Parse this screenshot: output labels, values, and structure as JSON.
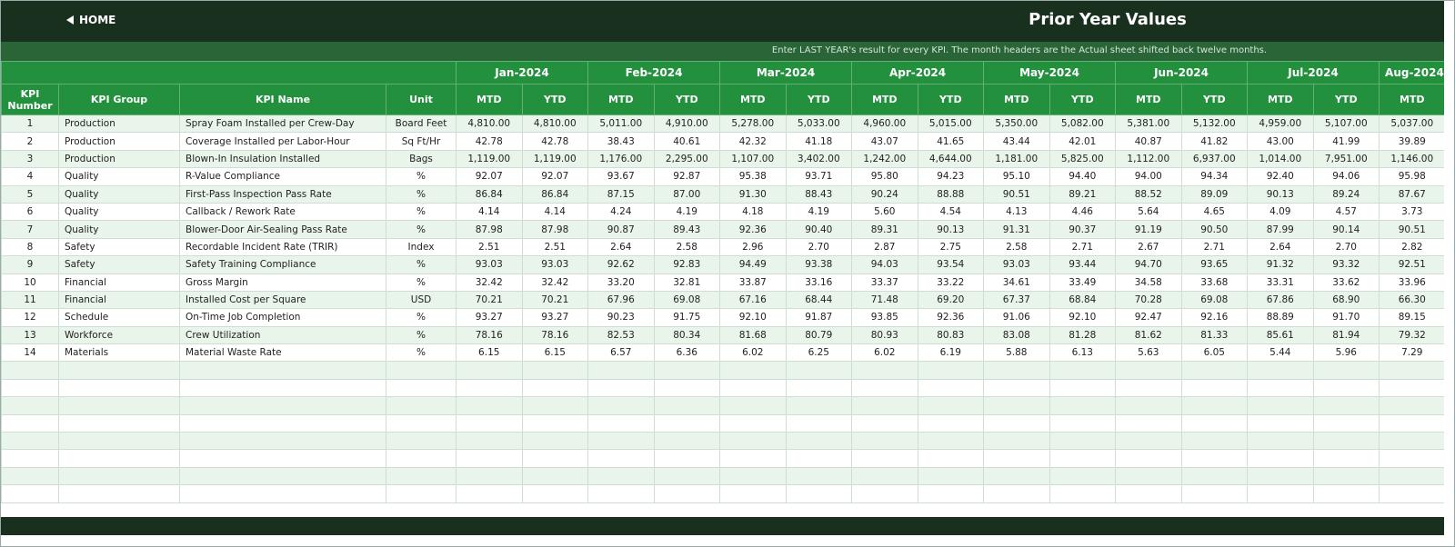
{
  "header": {
    "home": "HOME",
    "title": "Prior Year Values",
    "note": "Enter LAST YEAR's result for every KPI. The month headers are the Actual sheet shifted back twelve months."
  },
  "table": {
    "columns": [
      "KPI Number",
      "KPI Group",
      "KPI Name",
      "Unit"
    ],
    "months": [
      {
        "label": "Jan-2024",
        "sub": [
          "MTD",
          "YTD"
        ]
      },
      {
        "label": "Feb-2024",
        "sub": [
          "MTD",
          "YTD"
        ]
      },
      {
        "label": "Mar-2024",
        "sub": [
          "MTD",
          "YTD"
        ]
      },
      {
        "label": "Apr-2024",
        "sub": [
          "MTD",
          "YTD"
        ]
      },
      {
        "label": "May-2024",
        "sub": [
          "MTD",
          "YTD"
        ]
      },
      {
        "label": "Jun-2024",
        "sub": [
          "MTD",
          "YTD"
        ]
      },
      {
        "label": "Jul-2024",
        "sub": [
          "MTD",
          "YTD"
        ]
      },
      {
        "label": "Aug-2024",
        "sub": [
          "MTD"
        ]
      }
    ],
    "rows": [
      [
        "1",
        "Production",
        "Spray Foam Installed per Crew-Day",
        "Board Feet",
        "4,810.00",
        "4,810.00",
        "5,011.00",
        "4,910.00",
        "5,278.00",
        "5,033.00",
        "4,960.00",
        "5,015.00",
        "5,350.00",
        "5,082.00",
        "5,381.00",
        "5,132.00",
        "4,959.00",
        "5,107.00",
        "5,037.00"
      ],
      [
        "2",
        "Production",
        "Coverage Installed per Labor-Hour",
        "Sq Ft/Hr",
        "42.78",
        "42.78",
        "38.43",
        "40.61",
        "42.32",
        "41.18",
        "43.07",
        "41.65",
        "43.44",
        "42.01",
        "40.87",
        "41.82",
        "43.00",
        "41.99",
        "39.89"
      ],
      [
        "3",
        "Production",
        "Blown-In Insulation Installed",
        "Bags",
        "1,119.00",
        "1,119.00",
        "1,176.00",
        "2,295.00",
        "1,107.00",
        "3,402.00",
        "1,242.00",
        "4,644.00",
        "1,181.00",
        "5,825.00",
        "1,112.00",
        "6,937.00",
        "1,014.00",
        "7,951.00",
        "1,146.00"
      ],
      [
        "4",
        "Quality",
        "R-Value Compliance",
        "%",
        "92.07",
        "92.07",
        "93.67",
        "92.87",
        "95.38",
        "93.71",
        "95.80",
        "94.23",
        "95.10",
        "94.40",
        "94.00",
        "94.34",
        "92.40",
        "94.06",
        "95.98"
      ],
      [
        "5",
        "Quality",
        "First-Pass Inspection Pass Rate",
        "%",
        "86.84",
        "86.84",
        "87.15",
        "87.00",
        "91.30",
        "88.43",
        "90.24",
        "88.88",
        "90.51",
        "89.21",
        "88.52",
        "89.09",
        "90.13",
        "89.24",
        "87.67"
      ],
      [
        "6",
        "Quality",
        "Callback / Rework Rate",
        "%",
        "4.14",
        "4.14",
        "4.24",
        "4.19",
        "4.18",
        "4.19",
        "5.60",
        "4.54",
        "4.13",
        "4.46",
        "5.64",
        "4.65",
        "4.09",
        "4.57",
        "3.73"
      ],
      [
        "7",
        "Quality",
        "Blower-Door Air-Sealing Pass Rate",
        "%",
        "87.98",
        "87.98",
        "90.87",
        "89.43",
        "92.36",
        "90.40",
        "89.31",
        "90.13",
        "91.31",
        "90.37",
        "91.19",
        "90.50",
        "87.99",
        "90.14",
        "90.51"
      ],
      [
        "8",
        "Safety",
        "Recordable Incident Rate (TRIR)",
        "Index",
        "2.51",
        "2.51",
        "2.64",
        "2.58",
        "2.96",
        "2.70",
        "2.87",
        "2.75",
        "2.58",
        "2.71",
        "2.67",
        "2.71",
        "2.64",
        "2.70",
        "2.82"
      ],
      [
        "9",
        "Safety",
        "Safety Training Compliance",
        "%",
        "93.03",
        "93.03",
        "92.62",
        "92.83",
        "94.49",
        "93.38",
        "94.03",
        "93.54",
        "93.03",
        "93.44",
        "94.70",
        "93.65",
        "91.32",
        "93.32",
        "92.51"
      ],
      [
        "10",
        "Financial",
        "Gross Margin",
        "%",
        "32.42",
        "32.42",
        "33.20",
        "32.81",
        "33.87",
        "33.16",
        "33.37",
        "33.22",
        "34.61",
        "33.49",
        "34.58",
        "33.68",
        "33.31",
        "33.62",
        "33.96"
      ],
      [
        "11",
        "Financial",
        "Installed Cost per Square",
        "USD",
        "70.21",
        "70.21",
        "67.96",
        "69.08",
        "67.16",
        "68.44",
        "71.48",
        "69.20",
        "67.37",
        "68.84",
        "70.28",
        "69.08",
        "67.86",
        "68.90",
        "66.30"
      ],
      [
        "12",
        "Schedule",
        "On-Time Job Completion",
        "%",
        "93.27",
        "93.27",
        "90.23",
        "91.75",
        "92.10",
        "91.87",
        "93.85",
        "92.36",
        "91.06",
        "92.10",
        "92.47",
        "92.16",
        "88.89",
        "91.70",
        "89.15"
      ],
      [
        "13",
        "Workforce",
        "Crew Utilization",
        "%",
        "78.16",
        "78.16",
        "82.53",
        "80.34",
        "81.68",
        "80.79",
        "80.93",
        "80.83",
        "83.08",
        "81.28",
        "81.62",
        "81.33",
        "85.61",
        "81.94",
        "79.32"
      ],
      [
        "14",
        "Materials",
        "Material Waste Rate",
        "%",
        "6.15",
        "6.15",
        "6.57",
        "6.36",
        "6.02",
        "6.25",
        "6.02",
        "6.19",
        "5.88",
        "6.13",
        "5.63",
        "6.05",
        "5.44",
        "5.96",
        "7.29"
      ]
    ]
  }
}
